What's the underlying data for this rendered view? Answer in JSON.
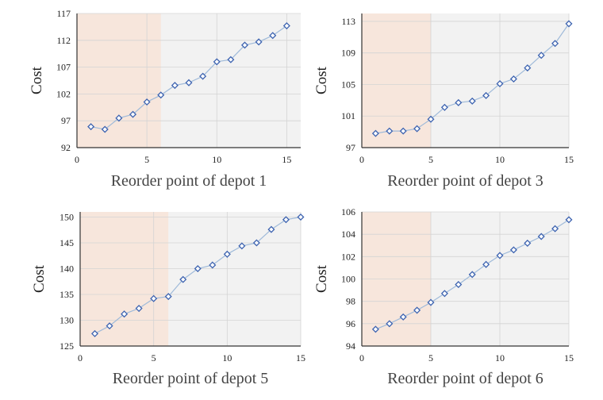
{
  "chart_data": [
    {
      "type": "line",
      "title": "",
      "xlabel": "Reorder point of depot 1",
      "ylabel": "Cost",
      "xlim": [
        0,
        16
      ],
      "ylim": [
        92,
        117
      ],
      "xticks": [
        0,
        5,
        10,
        15
      ],
      "yticks": [
        92,
        97,
        102,
        107,
        112,
        117
      ],
      "shaded_region": [
        0,
        6
      ],
      "x": [
        1,
        2,
        3,
        4,
        5,
        6,
        7,
        8,
        9,
        10,
        11,
        12,
        13,
        14,
        15
      ],
      "values": [
        95.9,
        95.4,
        97.5,
        98.2,
        100.5,
        101.8,
        103.6,
        104.1,
        105.3,
        108.0,
        108.4,
        111.1,
        111.7,
        112.9,
        114.7
      ]
    },
    {
      "type": "line",
      "title": "",
      "xlabel": "Reorder point of depot 3",
      "ylabel": "Cost",
      "xlim": [
        0,
        15
      ],
      "ylim": [
        97,
        114
      ],
      "xticks": [
        0,
        5,
        10,
        15
      ],
      "yticks": [
        97,
        101,
        105,
        109,
        113
      ],
      "shaded_region": [
        0,
        5
      ],
      "x": [
        1,
        2,
        3,
        4,
        5,
        6,
        7,
        8,
        9,
        10,
        11,
        12,
        13,
        14,
        15
      ],
      "values": [
        98.8,
        99.1,
        99.1,
        99.4,
        100.6,
        102.1,
        102.7,
        102.9,
        103.6,
        105.1,
        105.7,
        107.1,
        108.7,
        110.2,
        112.7
      ]
    },
    {
      "type": "line",
      "title": "",
      "xlabel": "Reorder point of depot 5",
      "ylabel": "Cost",
      "xlim": [
        0,
        15
      ],
      "ylim": [
        125,
        151
      ],
      "xticks": [
        0,
        5,
        10,
        15
      ],
      "yticks": [
        125,
        130,
        135,
        140,
        145,
        150
      ],
      "shaded_region": [
        0,
        6
      ],
      "x": [
        1,
        2,
        3,
        4,
        5,
        6,
        7,
        8,
        9,
        10,
        11,
        12,
        13,
        14,
        15
      ],
      "values": [
        127.4,
        128.9,
        131.2,
        132.3,
        134.2,
        134.6,
        137.9,
        140.0,
        140.7,
        142.8,
        144.4,
        145.0,
        147.6,
        149.5,
        150.0
      ]
    },
    {
      "type": "line",
      "title": "",
      "xlabel": "Reorder point of depot 6",
      "ylabel": "Cost",
      "xlim": [
        0,
        15
      ],
      "ylim": [
        94,
        106
      ],
      "xticks": [
        0,
        5,
        10,
        15
      ],
      "yticks": [
        94,
        96,
        98,
        100,
        102,
        104,
        106
      ],
      "shaded_region": [
        0,
        5
      ],
      "x": [
        1,
        2,
        3,
        4,
        5,
        6,
        7,
        8,
        9,
        10,
        11,
        12,
        13,
        14,
        15
      ],
      "values": [
        95.5,
        96.0,
        96.6,
        97.2,
        97.9,
        98.7,
        99.5,
        100.4,
        101.3,
        102.1,
        102.6,
        103.2,
        103.8,
        104.5,
        105.3
      ]
    }
  ],
  "colors": {
    "shade": "#f7e6dc",
    "background": "#f2f2f2",
    "grid": "#d4d4d4",
    "line": "#9fbad9",
    "marker": "#3d63b0"
  }
}
